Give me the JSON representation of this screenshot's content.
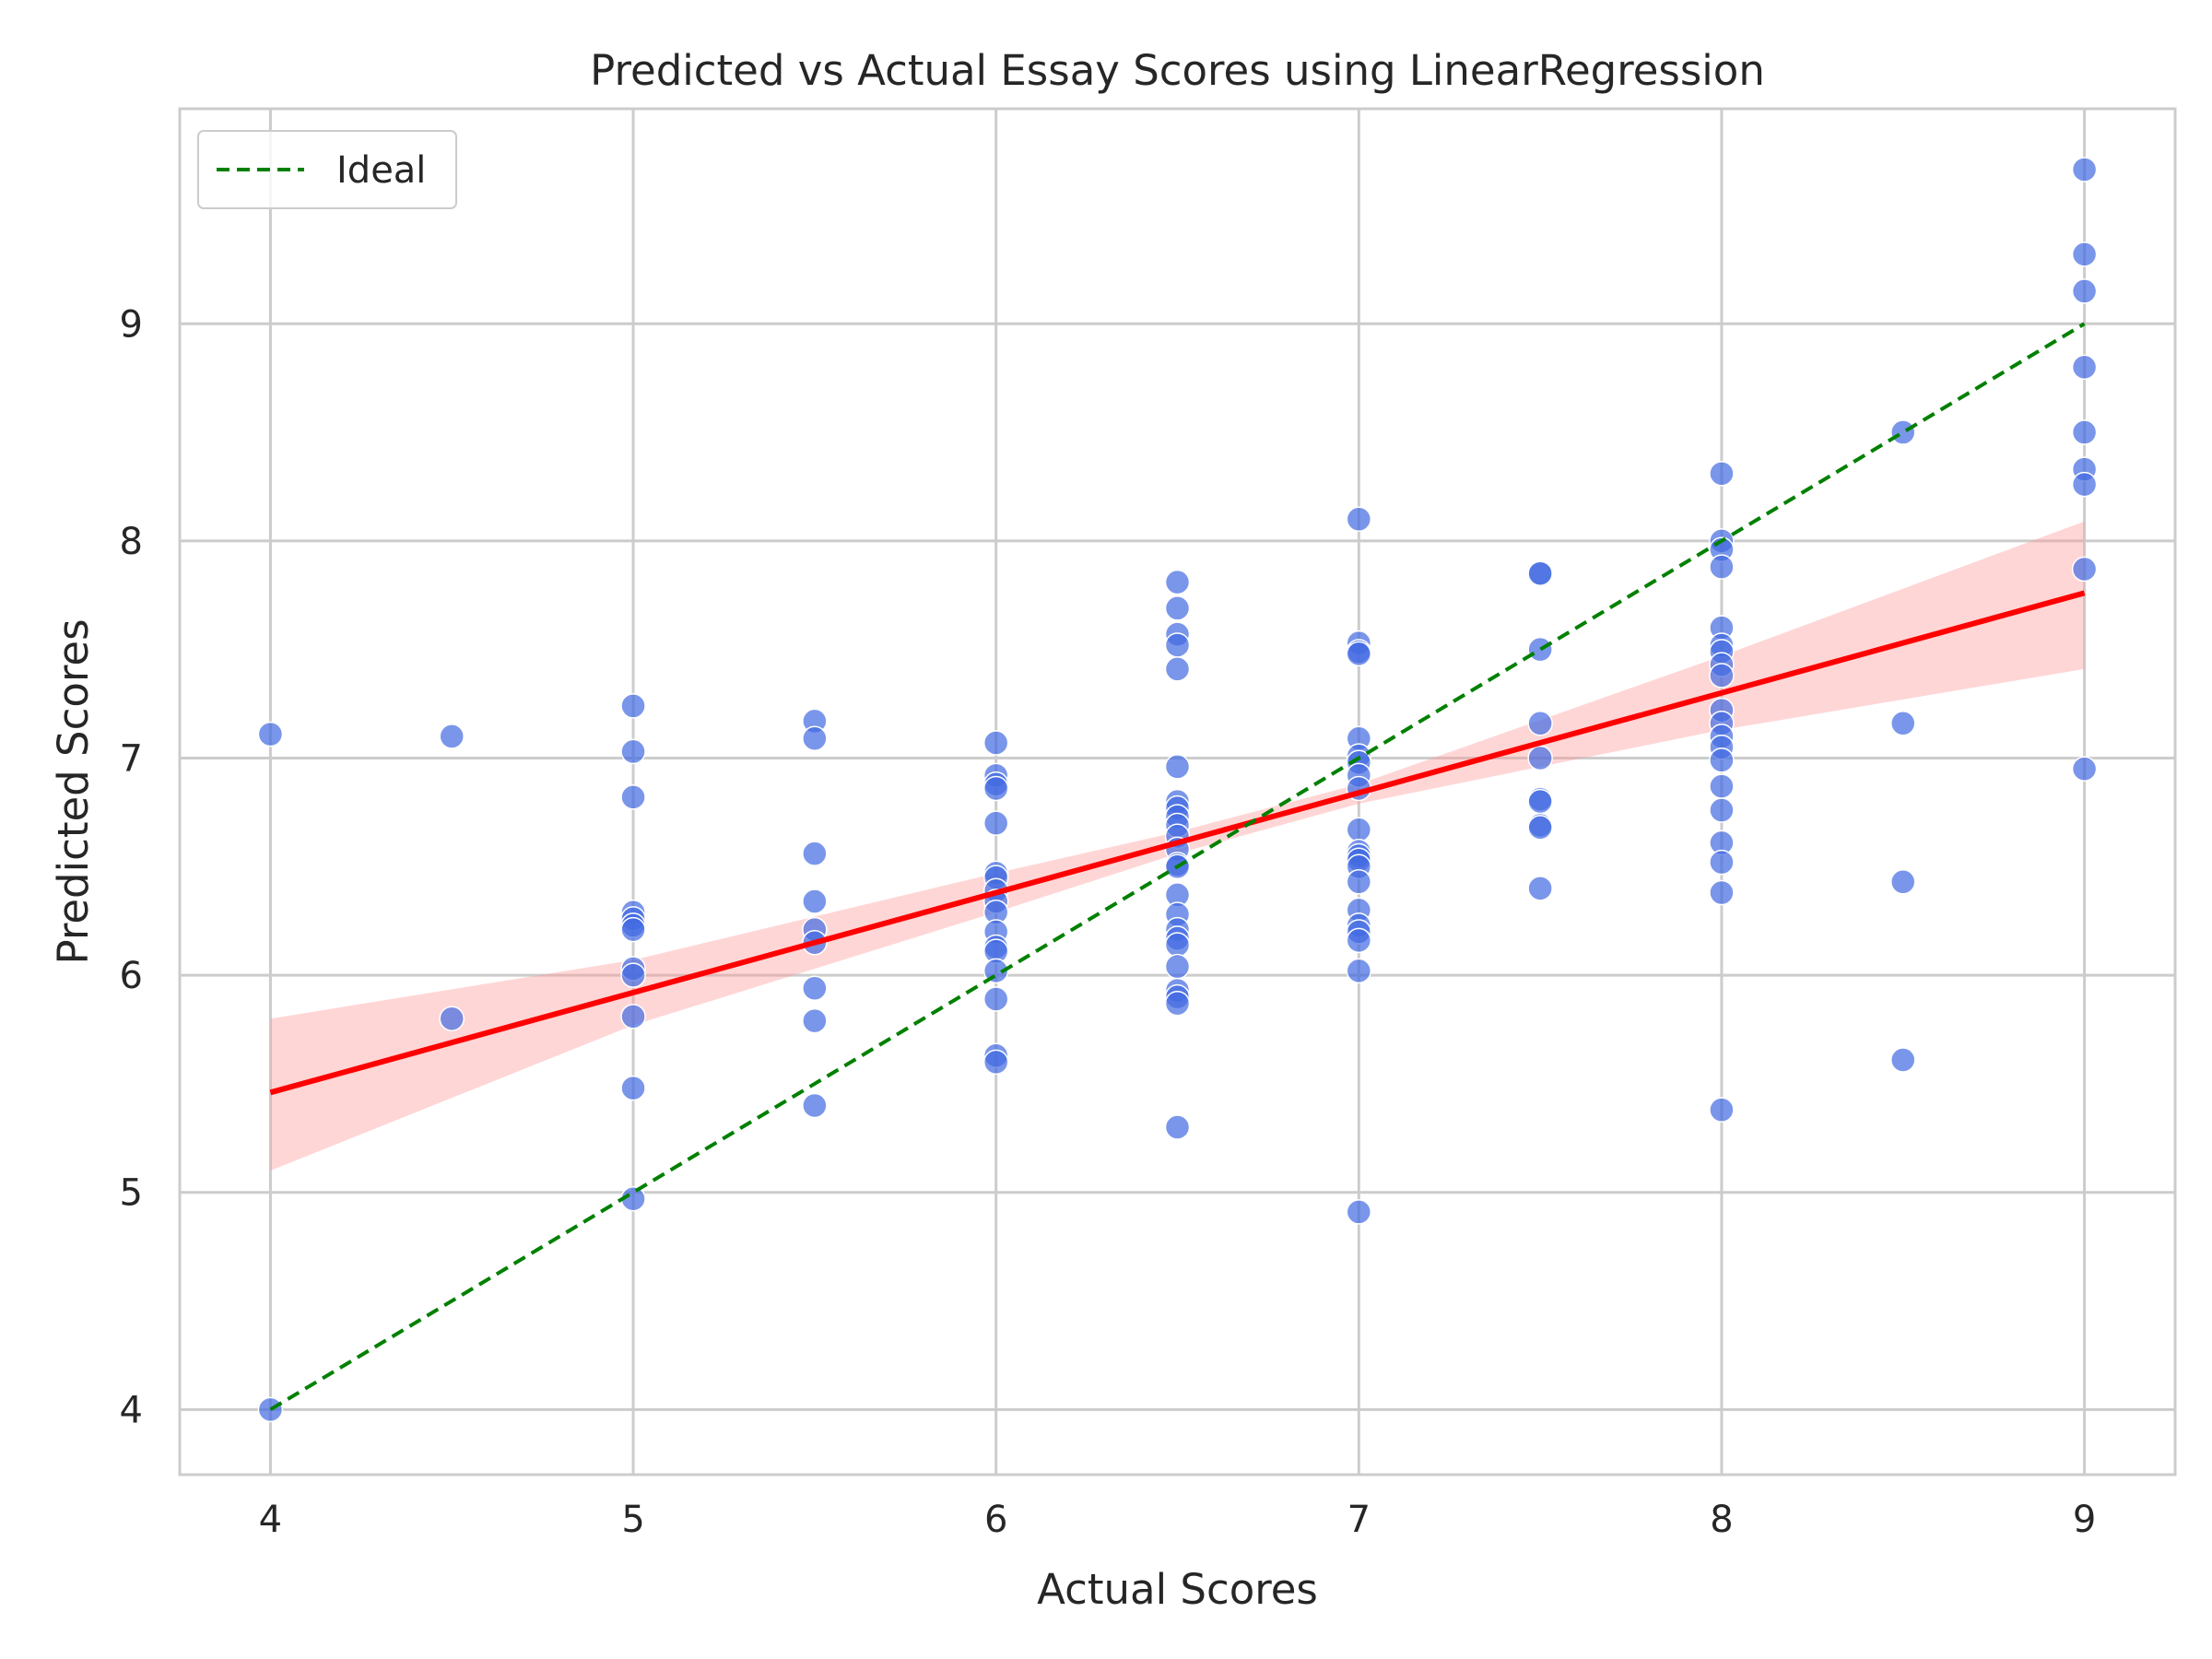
{
  "chart_data": {
    "type": "scatter",
    "title": "Predicted vs Actual Essay Scores using LinearRegression",
    "xlabel": "Actual Scores",
    "ylabel": "Predicted Scores",
    "xlim": [
      3.75,
      9.25
    ],
    "ylim": [
      3.7,
      9.99
    ],
    "xticks": [
      4,
      5,
      6,
      7,
      8,
      9
    ],
    "yticks": [
      4,
      5,
      6,
      7,
      8,
      9
    ],
    "grid": true,
    "legend_position": "top-left",
    "colors": {
      "points": "#4169e1",
      "ideal": "#008000",
      "regression": "#ff0000",
      "confidence_band": "#ff9999",
      "grid": "#cccccc",
      "spine": "#cccccc"
    },
    "series": [
      {
        "kind": "scatter",
        "points": [
          [
            4,
            7.11
          ],
          [
            4,
            4.0
          ],
          [
            4.5,
            7.1
          ],
          [
            4.5,
            5.8
          ],
          [
            5,
            7.24
          ],
          [
            5,
            7.03
          ],
          [
            5,
            6.82
          ],
          [
            5,
            6.29
          ],
          [
            5,
            6.26
          ],
          [
            5,
            6.23
          ],
          [
            5,
            6.21
          ],
          [
            5,
            6.03
          ],
          [
            5,
            6.0
          ],
          [
            5,
            5.81
          ],
          [
            5,
            5.48
          ],
          [
            5,
            4.97
          ],
          [
            5.5,
            7.17
          ],
          [
            5.5,
            7.09
          ],
          [
            5.5,
            6.56
          ],
          [
            5.5,
            6.34
          ],
          [
            5.5,
            6.21
          ],
          [
            5.5,
            6.15
          ],
          [
            5.5,
            5.94
          ],
          [
            5.5,
            5.79
          ],
          [
            5.5,
            5.4
          ],
          [
            6,
            7.07
          ],
          [
            6,
            6.92
          ],
          [
            6,
            6.88
          ],
          [
            6,
            6.86
          ],
          [
            6,
            6.7
          ],
          [
            6,
            6.47
          ],
          [
            6,
            6.45
          ],
          [
            6,
            6.39
          ],
          [
            6,
            6.34
          ],
          [
            6,
            6.29
          ],
          [
            6,
            6.2
          ],
          [
            6,
            6.13
          ],
          [
            6,
            6.11
          ],
          [
            6,
            6.02
          ],
          [
            6,
            5.89
          ],
          [
            6,
            5.63
          ],
          [
            6,
            5.6
          ],
          [
            6.5,
            7.81
          ],
          [
            6.5,
            7.69
          ],
          [
            6.5,
            7.57
          ],
          [
            6.5,
            7.52
          ],
          [
            6.5,
            7.41
          ],
          [
            6.5,
            6.96
          ],
          [
            6.5,
            6.8
          ],
          [
            6.5,
            6.77
          ],
          [
            6.5,
            6.73
          ],
          [
            6.5,
            6.69
          ],
          [
            6.5,
            6.64
          ],
          [
            6.5,
            6.58
          ],
          [
            6.5,
            6.51
          ],
          [
            6.5,
            6.5
          ],
          [
            6.5,
            6.37
          ],
          [
            6.5,
            6.28
          ],
          [
            6.5,
            6.21
          ],
          [
            6.5,
            6.17
          ],
          [
            6.5,
            6.14
          ],
          [
            6.5,
            6.04
          ],
          [
            6.5,
            5.93
          ],
          [
            6.5,
            5.9
          ],
          [
            6.5,
            5.87
          ],
          [
            6.5,
            5.3
          ],
          [
            7,
            8.1
          ],
          [
            7,
            7.53
          ],
          [
            7,
            7.49
          ],
          [
            7,
            7.48
          ],
          [
            7,
            7.09
          ],
          [
            7,
            7.01
          ],
          [
            7,
            6.98
          ],
          [
            7,
            6.92
          ],
          [
            7,
            6.86
          ],
          [
            7,
            6.67
          ],
          [
            7,
            6.57
          ],
          [
            7,
            6.55
          ],
          [
            7,
            6.53
          ],
          [
            7,
            6.5
          ],
          [
            7,
            6.43
          ],
          [
            7,
            6.3
          ],
          [
            7,
            6.23
          ],
          [
            7,
            6.2
          ],
          [
            7,
            6.16
          ],
          [
            7,
            6.02
          ],
          [
            7,
            4.91
          ],
          [
            7.5,
            7.85
          ],
          [
            7.5,
            7.85
          ],
          [
            7.5,
            7.5
          ],
          [
            7.5,
            7.16
          ],
          [
            7.5,
            7.0
          ],
          [
            7.5,
            6.81
          ],
          [
            7.5,
            6.8
          ],
          [
            7.5,
            6.69
          ],
          [
            7.5,
            6.68
          ],
          [
            7.5,
            6.4
          ],
          [
            8,
            8.31
          ],
          [
            8,
            8.0
          ],
          [
            8,
            7.96
          ],
          [
            8,
            7.88
          ],
          [
            8,
            7.6
          ],
          [
            8,
            7.52
          ],
          [
            8,
            7.49
          ],
          [
            8,
            7.43
          ],
          [
            8,
            7.38
          ],
          [
            8,
            7.22
          ],
          [
            8,
            7.16
          ],
          [
            8,
            7.1
          ],
          [
            8,
            7.05
          ],
          [
            8,
            6.99
          ],
          [
            8,
            6.87
          ],
          [
            8,
            6.76
          ],
          [
            8,
            6.61
          ],
          [
            8,
            6.52
          ],
          [
            8,
            6.38
          ],
          [
            8,
            5.38
          ],
          [
            8.5,
            8.5
          ],
          [
            8.5,
            7.16
          ],
          [
            8.5,
            6.43
          ],
          [
            8.5,
            5.61
          ],
          [
            9,
            9.71
          ],
          [
            9,
            9.32
          ],
          [
            9,
            9.15
          ],
          [
            9,
            8.8
          ],
          [
            9,
            8.5
          ],
          [
            9,
            8.33
          ],
          [
            9,
            8.26
          ],
          [
            9,
            7.87
          ],
          [
            9,
            6.95
          ]
        ]
      },
      {
        "kind": "line",
        "name": "Ideal",
        "style": "dashed",
        "points": [
          [
            4,
            4
          ],
          [
            9,
            9
          ]
        ]
      },
      {
        "kind": "regression",
        "points": [
          [
            4,
            5.46
          ],
          [
            9,
            7.76
          ]
        ],
        "band_upper": [
          [
            4,
            5.8
          ],
          [
            5,
            6.07
          ],
          [
            6,
            6.47
          ],
          [
            6.5,
            6.66
          ],
          [
            7,
            6.88
          ],
          [
            8,
            7.47
          ],
          [
            9,
            8.09
          ]
        ],
        "band_lower": [
          [
            4,
            5.1
          ],
          [
            5,
            5.77
          ],
          [
            6,
            6.29
          ],
          [
            6.5,
            6.56
          ],
          [
            7,
            6.79
          ],
          [
            8,
            7.13
          ],
          [
            9,
            7.41
          ]
        ]
      }
    ]
  }
}
